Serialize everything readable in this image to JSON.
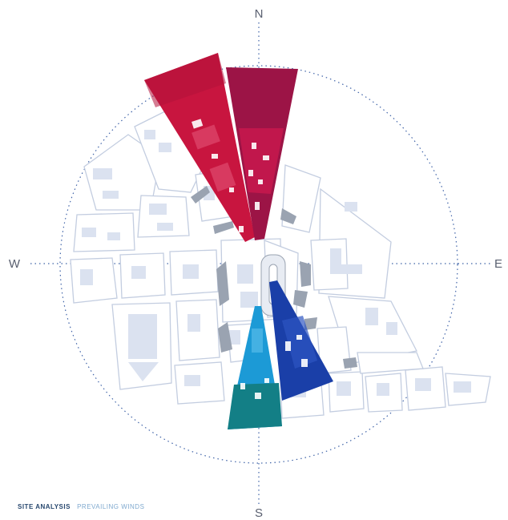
{
  "compass": {
    "north": "N",
    "south": "S",
    "east": "E",
    "west": "W"
  },
  "caption": {
    "primary": "SITE ANALYSIS",
    "secondary": "PREVAILING WINDS"
  },
  "colors": {
    "dotted_line": "#3f63a8",
    "block_fill": "#ffffff",
    "block_stroke": "#c3cde0",
    "building_fill": "#dbe2f0",
    "shadow": "#9aa3b1",
    "wind_crimson": "#c8153f",
    "wind_magenta": "#9c1446",
    "wind_navy": "#1a3fa8",
    "wind_cyan": "#1c9ad6",
    "wind_teal": "#137f86"
  },
  "winds": [
    {
      "name": "wind-sector-nnw",
      "color": "#c8153f"
    },
    {
      "name": "wind-sector-n",
      "color": "#9c1446"
    },
    {
      "name": "wind-sector-sse",
      "color": "#1a3fa8"
    },
    {
      "name": "wind-sector-s",
      "color": "#1c9ad6"
    }
  ]
}
